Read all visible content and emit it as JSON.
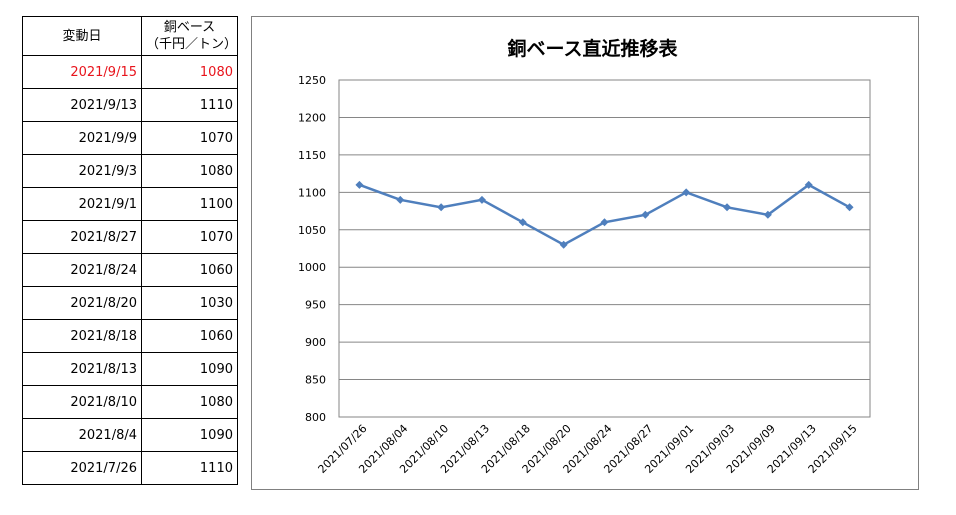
{
  "table": {
    "header_date": "変動日",
    "header_price_line1": "銅ベース",
    "header_price_line2": "（千円／トン）",
    "highlight_color": "#e8141c",
    "rows": [
      {
        "date": "2021/9/15",
        "price": "1080"
      },
      {
        "date": "2021/9/13",
        "price": "1110"
      },
      {
        "date": "2021/9/9",
        "price": "1070"
      },
      {
        "date": "2021/9/3",
        "price": "1080"
      },
      {
        "date": "2021/9/1",
        "price": "1100"
      },
      {
        "date": "2021/8/27",
        "price": "1070"
      },
      {
        "date": "2021/8/24",
        "price": "1060"
      },
      {
        "date": "2021/8/20",
        "price": "1030"
      },
      {
        "date": "2021/8/18",
        "price": "1060"
      },
      {
        "date": "2021/8/13",
        "price": "1090"
      },
      {
        "date": "2021/8/10",
        "price": "1080"
      },
      {
        "date": "2021/8/4",
        "price": "1090"
      },
      {
        "date": "2021/7/26",
        "price": "1110"
      }
    ]
  },
  "chart_data": {
    "type": "line",
    "title": "銅ベース直近推移表",
    "categories": [
      "2021/07/26",
      "2021/08/04",
      "2021/08/10",
      "2021/08/13",
      "2021/08/18",
      "2021/08/20",
      "2021/08/24",
      "2021/08/27",
      "2021/09/01",
      "2021/09/03",
      "2021/09/09",
      "2021/09/13",
      "2021/09/15"
    ],
    "values": [
      1110,
      1090,
      1080,
      1090,
      1060,
      1030,
      1060,
      1070,
      1100,
      1080,
      1070,
      1110,
      1080
    ],
    "yticks": [
      "800",
      "850",
      "900",
      "950",
      "1000",
      "1050",
      "1100",
      "1150",
      "1200",
      "1250"
    ],
    "ylim": [
      800,
      1250
    ],
    "grid": true,
    "legend": "none",
    "line_color": "#4f7fbd"
  }
}
